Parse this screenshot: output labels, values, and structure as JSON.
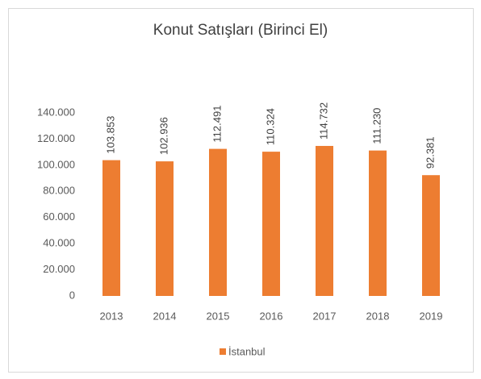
{
  "chart_data": {
    "type": "bar",
    "title": "Konut Satışları (Birinci El)",
    "categories": [
      "2013",
      "2014",
      "2015",
      "2016",
      "2017",
      "2018",
      "2019"
    ],
    "series": [
      {
        "name": "İstanbul",
        "color": "#ed7d31",
        "values": [
          103853,
          102936,
          112491,
          110324,
          114732,
          111230,
          92381
        ],
        "value_labels": [
          "103.853",
          "102.936",
          "112.491",
          "110.324",
          "114.732",
          "111.230",
          "92.381"
        ]
      }
    ],
    "ylim": [
      0,
      140000
    ],
    "yticks": [
      0,
      {
        "value": 20000,
        "label": "20.000"
      },
      {
        "value": 40000,
        "label": "40.000"
      },
      {
        "value": 60000,
        "label": "60.000"
      },
      {
        "value": 80000,
        "label": "80.000"
      },
      {
        "value": 100000,
        "label": "100.000"
      },
      {
        "value": 120000,
        "label": "120.000"
      },
      {
        "value": 140000,
        "label": "140.000"
      }
    ],
    "grid": false,
    "legend": "bottom"
  }
}
